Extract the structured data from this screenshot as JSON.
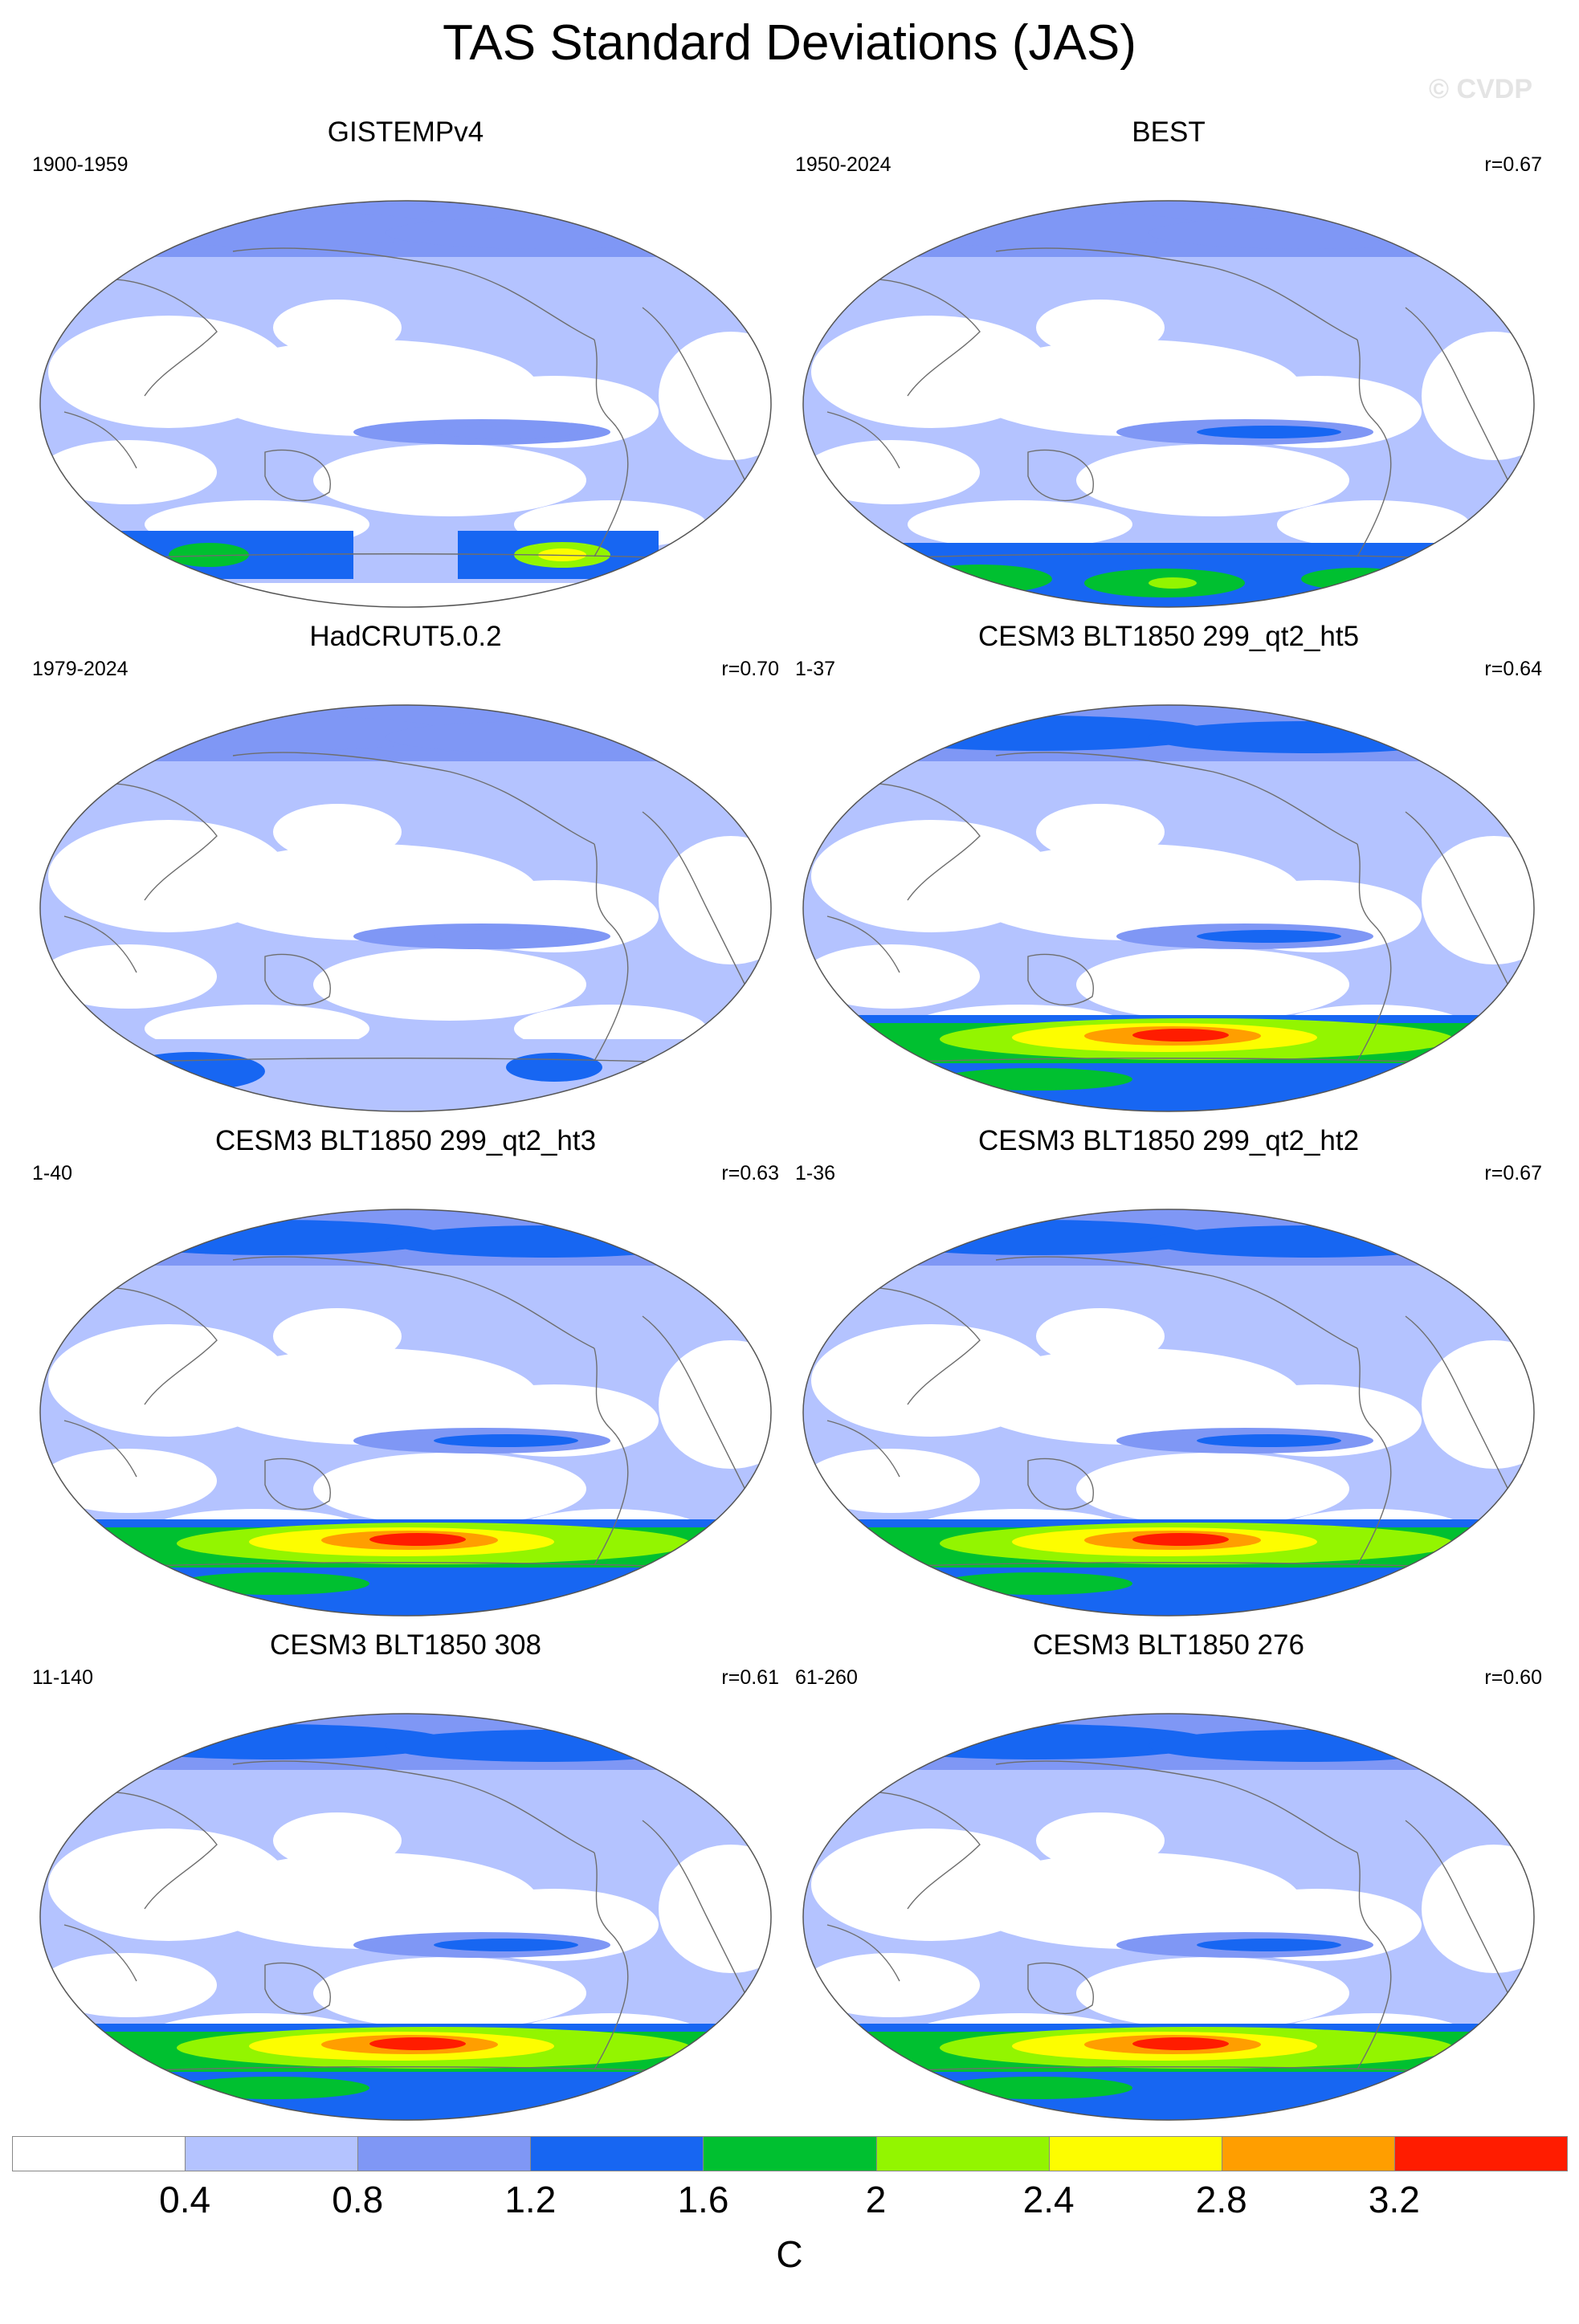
{
  "title": "TAS Standard Deviations (JAS)",
  "watermark": "© CVDP",
  "colors": {
    "levels": [
      "#ffffff",
      "#b4c3ff",
      "#7f97f5",
      "#1766f2",
      "#00c030",
      "#93f500",
      "#fdfd00",
      "#ff9e00",
      "#ff1c00"
    ],
    "coastline": "#6e6e6e",
    "map_border": "#555555"
  },
  "panels": [
    {
      "title": "GISTEMPv4",
      "period": "1900-1959",
      "correlation": "",
      "kind": "obs_gistemp"
    },
    {
      "title": "BEST",
      "period": "1950-2024",
      "correlation": "r=0.67",
      "kind": "obs_best"
    },
    {
      "title": "HadCRUT5.0.2",
      "period": "1979-2024",
      "correlation": "r=0.70",
      "kind": "obs_hadcrut"
    },
    {
      "title": "CESM3 BLT1850 299_qt2_ht5",
      "period": "1-37",
      "correlation": "r=0.64",
      "kind": "model"
    },
    {
      "title": "CESM3 BLT1850 299_qt2_ht3",
      "period": "1-40",
      "correlation": "r=0.63",
      "kind": "model"
    },
    {
      "title": "CESM3 BLT1850 299_qt2_ht2",
      "period": "1-36",
      "correlation": "r=0.67",
      "kind": "model"
    },
    {
      "title": "CESM3 BLT1850 308",
      "period": "11-140",
      "correlation": "r=0.61",
      "kind": "model"
    },
    {
      "title": "CESM3 BLT1850 276",
      "period": "61-260",
      "correlation": "r=0.60",
      "kind": "model"
    }
  ],
  "colorbar": {
    "tick_labels": [
      "0.4",
      "0.8",
      "1.2",
      "1.6",
      "2",
      "2.4",
      "2.8",
      "3.2"
    ],
    "unit": "C"
  }
}
